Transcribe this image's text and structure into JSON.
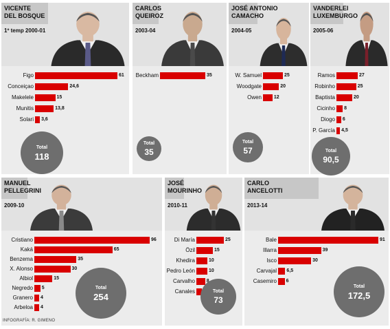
{
  "coaches": [
    {
      "first": "VICENTE",
      "last": "DEL BOSQUE",
      "period": "1º temp 2000-01",
      "total": "118",
      "players": [
        [
          "Figo",
          "61"
        ],
        [
          "Conceiçao",
          "24,6"
        ],
        [
          "Makelele",
          "15"
        ],
        [
          "Munitis",
          "13,8"
        ],
        [
          "Solari",
          "3,6"
        ]
      ]
    },
    {
      "first": "CARLOS",
      "last": "QUEIROZ",
      "period": "2003-04",
      "total": "35",
      "players": [
        [
          "Beckham",
          "35"
        ]
      ]
    },
    {
      "first": "JOSÉ ANTONIO",
      "last": "CAMACHO",
      "period": "2004-05",
      "total": "57",
      "players": [
        [
          "W. Samuel",
          "25"
        ],
        [
          "Woodgate",
          "20"
        ],
        [
          "Owen",
          "12"
        ]
      ]
    },
    {
      "first": "VANDERLEI",
      "last": "LUXEMBURGO",
      "period": "2005-06",
      "total": "90,5",
      "players": [
        [
          "Ramos",
          "27"
        ],
        [
          "Robinho",
          "25"
        ],
        [
          "Baptista",
          "20"
        ],
        [
          "Cicinho",
          "8"
        ],
        [
          "Diogo",
          "6"
        ],
        [
          "P. García",
          "4,5"
        ]
      ]
    },
    {
      "first": "MANUEL",
      "last": "PELLEGRINI",
      "period": "2009-10",
      "total": "254",
      "players": [
        [
          "Cristiano",
          "96"
        ],
        [
          "Kaká",
          "65"
        ],
        [
          "Benzema",
          "35"
        ],
        [
          "X. Alonso",
          "30"
        ],
        [
          "Albiol",
          "15"
        ],
        [
          "Negredo",
          "5"
        ],
        [
          "Granero",
          "4"
        ],
        [
          "Arbeloa",
          "4"
        ]
      ]
    },
    {
      "first": "JOSÉ",
      "last": "MOURINHO",
      "period": "2010-11",
      "total": "73",
      "players": [
        [
          "Di María",
          "25"
        ],
        [
          "Özil",
          "15"
        ],
        [
          "Khedira",
          "10"
        ],
        [
          "Pedro León",
          "10"
        ],
        [
          "Carvalho",
          "8"
        ],
        [
          "Canales",
          "5"
        ]
      ]
    },
    {
      "first": "CARLO",
      "last": "ANCELOTTI",
      "period": "2013-14",
      "total": "172,5",
      "players": [
        [
          "Bale",
          "91"
        ],
        [
          "Illarra",
          "39"
        ],
        [
          "Isco",
          "30"
        ],
        [
          "Carvajal",
          "6,5"
        ],
        [
          "Casemiro",
          "6"
        ]
      ]
    }
  ],
  "total_label": "Total",
  "credit": "INFOGRAFÍA: R. GIMENO",
  "colors": {
    "bar": "#d90000",
    "circle": "#6e6e6e",
    "header": "#e2e2e2",
    "name_band": "#c7c7c7",
    "body": "#ececec"
  }
}
